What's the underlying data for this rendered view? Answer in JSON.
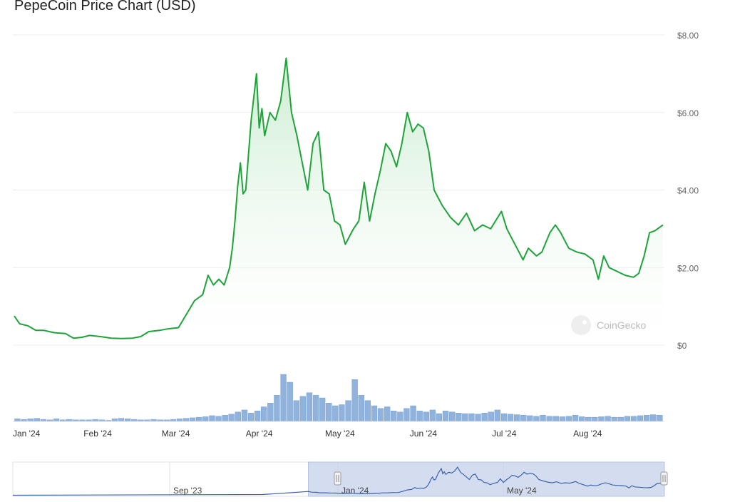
{
  "title": "PepeCoin Price Chart (USD)",
  "watermark": "CoinGecko",
  "navigator_labels": [
    "Sep '23",
    "Jan '24",
    "May '24"
  ],
  "colors": {
    "line": "#1fa33a",
    "area_top": "#c8ecce",
    "volume": "#8fb3dd",
    "nav_fill": "#c5d1ea",
    "nav_line": "#3d62ad"
  },
  "chart_data": {
    "type": "area",
    "title": "PepeCoin Price Chart (USD)",
    "x_range": [
      "2024-01-01",
      "2024-08-29"
    ],
    "ylim": [
      0,
      8
    ],
    "y_ticks": [
      "$0",
      "$2.00",
      "$4.00",
      "$6.00",
      "$8.00"
    ],
    "y_tick_values": [
      0,
      2,
      4,
      6,
      8
    ],
    "x_ticks": [
      "Jan '24",
      "Feb '24",
      "Mar '24",
      "Apr '24",
      "May '24",
      "Jun '24",
      "Jul '24",
      "Aug '24"
    ],
    "x_tick_dates": [
      "2024-01-01",
      "2024-02-01",
      "2024-03-01",
      "2024-04-01",
      "2024-05-01",
      "2024-06-01",
      "2024-07-01",
      "2024-08-01"
    ],
    "grid": true,
    "series": [
      {
        "points": [
          [
            "2024-01-01",
            0.75
          ],
          [
            "2024-01-03",
            0.55
          ],
          [
            "2024-01-06",
            0.5
          ],
          [
            "2024-01-09",
            0.38
          ],
          [
            "2024-01-12",
            0.38
          ],
          [
            "2024-01-16",
            0.32
          ],
          [
            "2024-01-20",
            0.3
          ],
          [
            "2024-01-23",
            0.18
          ],
          [
            "2024-01-26",
            0.2
          ],
          [
            "2024-01-29",
            0.25
          ],
          [
            "2024-02-02",
            0.22
          ],
          [
            "2024-02-06",
            0.18
          ],
          [
            "2024-02-10",
            0.17
          ],
          [
            "2024-02-14",
            0.18
          ],
          [
            "2024-02-17",
            0.22
          ],
          [
            "2024-02-20",
            0.35
          ],
          [
            "2024-02-24",
            0.38
          ],
          [
            "2024-02-27",
            0.42
          ],
          [
            "2024-03-02",
            0.45
          ],
          [
            "2024-03-05",
            0.8
          ],
          [
            "2024-03-08",
            1.15
          ],
          [
            "2024-03-11",
            1.3
          ],
          [
            "2024-03-13",
            1.8
          ],
          [
            "2024-03-15",
            1.55
          ],
          [
            "2024-03-17",
            1.7
          ],
          [
            "2024-03-19",
            1.55
          ],
          [
            "2024-03-21",
            2.0
          ],
          [
            "2024-03-22",
            2.5
          ],
          [
            "2024-03-23",
            3.2
          ],
          [
            "2024-03-24",
            4.1
          ],
          [
            "2024-03-25",
            4.7
          ],
          [
            "2024-03-26",
            3.9
          ],
          [
            "2024-03-27",
            4.0
          ],
          [
            "2024-03-29",
            5.8
          ],
          [
            "2024-03-31",
            7.0
          ],
          [
            "2024-04-01",
            5.6
          ],
          [
            "2024-04-02",
            6.1
          ],
          [
            "2024-04-03",
            5.4
          ],
          [
            "2024-04-05",
            6.0
          ],
          [
            "2024-04-07",
            5.8
          ],
          [
            "2024-04-09",
            6.3
          ],
          [
            "2024-04-11",
            7.4
          ],
          [
            "2024-04-13",
            6.0
          ],
          [
            "2024-04-15",
            5.4
          ],
          [
            "2024-04-17",
            4.7
          ],
          [
            "2024-04-19",
            4.0
          ],
          [
            "2024-04-21",
            5.2
          ],
          [
            "2024-04-23",
            5.5
          ],
          [
            "2024-04-25",
            4.0
          ],
          [
            "2024-04-27",
            3.9
          ],
          [
            "2024-04-29",
            3.2
          ],
          [
            "2024-05-01",
            3.1
          ],
          [
            "2024-05-03",
            2.6
          ],
          [
            "2024-05-06",
            3.0
          ],
          [
            "2024-05-08",
            3.2
          ],
          [
            "2024-05-10",
            4.2
          ],
          [
            "2024-05-12",
            3.2
          ],
          [
            "2024-05-14",
            3.9
          ],
          [
            "2024-05-16",
            4.5
          ],
          [
            "2024-05-18",
            5.2
          ],
          [
            "2024-05-20",
            5.0
          ],
          [
            "2024-05-22",
            4.6
          ],
          [
            "2024-05-24",
            5.2
          ],
          [
            "2024-05-26",
            6.0
          ],
          [
            "2024-05-28",
            5.5
          ],
          [
            "2024-05-30",
            5.7
          ],
          [
            "2024-06-01",
            5.6
          ],
          [
            "2024-06-03",
            5.0
          ],
          [
            "2024-06-05",
            4.0
          ],
          [
            "2024-06-08",
            3.6
          ],
          [
            "2024-06-11",
            3.3
          ],
          [
            "2024-06-14",
            3.1
          ],
          [
            "2024-06-17",
            3.4
          ],
          [
            "2024-06-20",
            2.95
          ],
          [
            "2024-06-23",
            3.1
          ],
          [
            "2024-06-26",
            3.0
          ],
          [
            "2024-06-30",
            3.45
          ],
          [
            "2024-07-02",
            3.0
          ],
          [
            "2024-07-05",
            2.6
          ],
          [
            "2024-07-08",
            2.2
          ],
          [
            "2024-07-10",
            2.5
          ],
          [
            "2024-07-13",
            2.3
          ],
          [
            "2024-07-15",
            2.4
          ],
          [
            "2024-07-18",
            2.9
          ],
          [
            "2024-07-20",
            3.1
          ],
          [
            "2024-07-22",
            2.9
          ],
          [
            "2024-07-25",
            2.5
          ],
          [
            "2024-07-28",
            2.4
          ],
          [
            "2024-07-31",
            2.35
          ],
          [
            "2024-08-03",
            2.2
          ],
          [
            "2024-08-05",
            1.7
          ],
          [
            "2024-08-07",
            2.3
          ],
          [
            "2024-08-09",
            2.0
          ],
          [
            "2024-08-12",
            1.9
          ],
          [
            "2024-08-15",
            1.8
          ],
          [
            "2024-08-18",
            1.75
          ],
          [
            "2024-08-20",
            1.85
          ],
          [
            "2024-08-22",
            2.3
          ],
          [
            "2024-08-24",
            2.9
          ],
          [
            "2024-08-26",
            2.95
          ],
          [
            "2024-08-29",
            3.1
          ]
        ]
      }
    ],
    "volume": {
      "note_units": "relative",
      "values": [
        0.5,
        0.4,
        0.5,
        0.6,
        0.4,
        0.3,
        0.5,
        0.3,
        0.4,
        0.3,
        0.3,
        0.3,
        0.4,
        0.3,
        0.2,
        0.5,
        0.6,
        0.5,
        0.4,
        0.3,
        0.3,
        0.4,
        0.3,
        0.3,
        0.4,
        0.5,
        0.6,
        0.7,
        0.8,
        0.9,
        1.1,
        1.0,
        1.2,
        1.4,
        1.8,
        2.2,
        1.6,
        2.0,
        2.8,
        3.5,
        5.0,
        9.0,
        7.5,
        4.0,
        4.8,
        5.5,
        5.0,
        4.5,
        3.5,
        3.0,
        3.2,
        4.0,
        8.0,
        5.0,
        4.0,
        3.0,
        2.5,
        2.8,
        2.0,
        1.8,
        2.5,
        3.0,
        2.0,
        1.8,
        2.2,
        1.5,
        2.0,
        1.8,
        1.6,
        1.5,
        1.5,
        1.4,
        1.6,
        1.8,
        2.2,
        1.5,
        1.4,
        1.3,
        1.2,
        1.1,
        1.0,
        1.2,
        1.0,
        1.0,
        0.9,
        1.0,
        1.2,
        0.9,
        0.8,
        0.8,
        0.9,
        1.0,
        0.8,
        0.8,
        1.0,
        1.0,
        1.1,
        1.2,
        1.3,
        1.2
      ]
    },
    "navigator": {
      "x_range": [
        "2023-06-15",
        "2024-08-29"
      ],
      "selected_range": [
        "2024-01-01",
        "2024-08-29"
      ]
    }
  }
}
